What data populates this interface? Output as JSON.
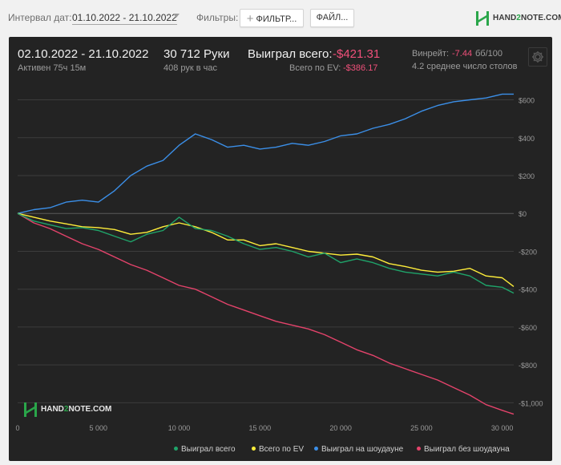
{
  "toolbar": {
    "date_interval_label": "Интервал дат:",
    "date_interval_value": "01.10.2022 - 21.10.2022",
    "filters_label": "Фильтры:",
    "filters_button": "ФИЛЬТР...",
    "file_button": "ФАЙЛ...",
    "brand": {
      "pre": "HAND",
      "two": "2",
      "post": "NOTE.COM"
    }
  },
  "summary": {
    "date_range": "02.10.2022 - 21.10.2022",
    "active": "Активен 75ч 15м",
    "hands": "30 712 Руки",
    "hands_per_hour": "408 рук в час",
    "won_total_label": "Выиграл всего:",
    "won_total_value": "-$421.31",
    "ev_total_label": "Всего по EV:",
    "ev_total_value": "-$386.17",
    "winrate_label": "Винрейт:",
    "winrate_value": "-7.44",
    "winrate_unit": "бб/100",
    "tables": "4.2 среднее число столов"
  },
  "icons": {
    "settings": "gear-icon",
    "plus": "plus-icon",
    "logo": "hand2note-logo-icon",
    "caret": "chevron-down-icon"
  },
  "colors": {
    "panel_bg": "#232323",
    "won": "#1fa46a",
    "ev": "#ffee3a",
    "showdown": "#3b8fe8",
    "non_showdown": "#e4436b",
    "negative": "#f0507a",
    "brand_green": "#2aa64a"
  },
  "chart_data": {
    "type": "line",
    "xlim": [
      0,
      30712
    ],
    "ylim": [
      -1100,
      670
    ],
    "x_ticks": [
      0,
      5000,
      10000,
      15000,
      20000,
      25000,
      30000
    ],
    "x_tick_labels": [
      "0",
      "5 000",
      "10 000",
      "15 000",
      "20 000",
      "25 000",
      "30 000"
    ],
    "y_ticks": [
      600,
      400,
      200,
      0,
      -200,
      -400,
      -600,
      -800,
      -1000
    ],
    "y_tick_labels": [
      "$600",
      "$400",
      "$200",
      "$0",
      "-$200",
      "-$400",
      "-$600",
      "-$800",
      "-$1,000"
    ],
    "grid": "horizontal",
    "legend_position": "bottom-right",
    "x": [
      0,
      1000,
      2000,
      3000,
      4000,
      5000,
      6000,
      7000,
      8000,
      9000,
      10000,
      11000,
      12000,
      13000,
      14000,
      15000,
      16000,
      17000,
      18000,
      19000,
      20000,
      21000,
      22000,
      23000,
      24000,
      25000,
      26000,
      27000,
      28000,
      29000,
      30000,
      30712
    ],
    "series": [
      {
        "name": "Выиграл всего",
        "color": "#1fa46a",
        "values": [
          0,
          -40,
          -60,
          -80,
          -75,
          -90,
          -120,
          -150,
          -110,
          -90,
          -20,
          -80,
          -90,
          -120,
          -160,
          -190,
          -180,
          -200,
          -230,
          -210,
          -260,
          -240,
          -260,
          -290,
          -310,
          -320,
          -330,
          -310,
          -330,
          -380,
          -390,
          -421
        ]
      },
      {
        "name": "Всего по EV",
        "color": "#ffee3a",
        "values": [
          0,
          -20,
          -40,
          -55,
          -70,
          -75,
          -85,
          -110,
          -100,
          -70,
          -50,
          -70,
          -100,
          -140,
          -140,
          -170,
          -160,
          -180,
          -200,
          -210,
          -220,
          -215,
          -230,
          -265,
          -280,
          -300,
          -310,
          -305,
          -290,
          -330,
          -340,
          -386
        ]
      },
      {
        "name": "Выиграл на шоудауне",
        "color": "#3b8fe8",
        "values": [
          0,
          20,
          30,
          60,
          70,
          60,
          120,
          200,
          250,
          280,
          360,
          420,
          390,
          350,
          360,
          340,
          350,
          370,
          360,
          380,
          410,
          420,
          450,
          470,
          500,
          540,
          570,
          590,
          600,
          610,
          630,
          630
        ]
      },
      {
        "name": "Выиграл без шоудауна",
        "color": "#e4436b",
        "values": [
          0,
          -50,
          -80,
          -120,
          -160,
          -190,
          -230,
          -270,
          -300,
          -340,
          -380,
          -400,
          -440,
          -480,
          -510,
          -540,
          -570,
          -590,
          -610,
          -640,
          -680,
          -720,
          -750,
          -790,
          -820,
          -850,
          -880,
          -920,
          -960,
          -1010,
          -1040,
          -1060
        ]
      }
    ]
  },
  "watermark": {
    "pre": "HAND",
    "two": "2",
    "post": "NOTE.COM"
  }
}
